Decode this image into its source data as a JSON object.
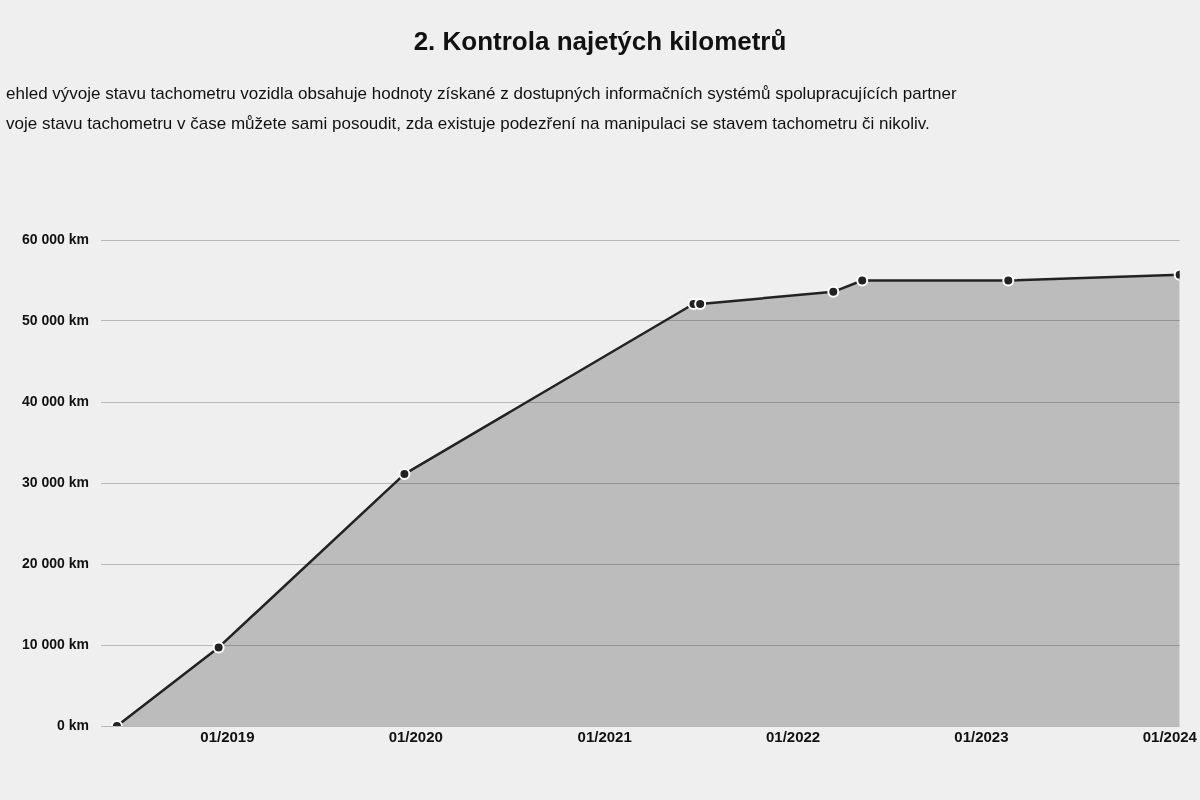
{
  "chart_data": {
    "type": "area",
    "title": "2. Kontrola najetých kilometrů",
    "annotations": [
      "ehled vývoje stavu tachometru vozidla obsahuje hodnoty získané z dostupných informačních systémů spolupracujících partner",
      "voje stavu tachometru v čase můžete sami posoudit, zda existuje podezření na manipulaci se stavem tachometru či nikoliv."
    ],
    "x": [
      "2018-06-01",
      "2018-12-15",
      "2019-12-10",
      "2021-06-22",
      "2021-07-05",
      "2022-03-20",
      "2022-05-15",
      "2023-02-22",
      "2024-01-20"
    ],
    "series": [
      {
        "color": "#222222",
        "values": [
          0,
          9700,
          31100,
          52100,
          52100,
          53600,
          55000,
          55000,
          55700
        ]
      }
    ],
    "xlim": [
      "2018-05-01",
      "2024-01-20"
    ],
    "xticks": [
      {
        "value": "2019-01-01",
        "label": "01/2019"
      },
      {
        "value": "2020-01-01",
        "label": "01/2020"
      },
      {
        "value": "2021-01-01",
        "label": "01/2021"
      },
      {
        "value": "2022-01-01",
        "label": "01/2022"
      },
      {
        "value": "2023-01-01",
        "label": "01/2023"
      },
      {
        "value": "2024-01-01",
        "label": "01/2024"
      }
    ],
    "ylim": [
      0,
      60000
    ],
    "yticks": [
      {
        "value": 0,
        "label": "0 km"
      },
      {
        "value": 10000,
        "label": "10 000 km"
      },
      {
        "value": 20000,
        "label": "20 000 km"
      },
      {
        "value": 30000,
        "label": "30 000 km"
      },
      {
        "value": 40000,
        "label": "40 000 km"
      },
      {
        "value": 50000,
        "label": "50 000 km"
      },
      {
        "value": 60000,
        "label": "60 000 km"
      }
    ],
    "grid": "y",
    "marker": "circle",
    "legend": false
  }
}
